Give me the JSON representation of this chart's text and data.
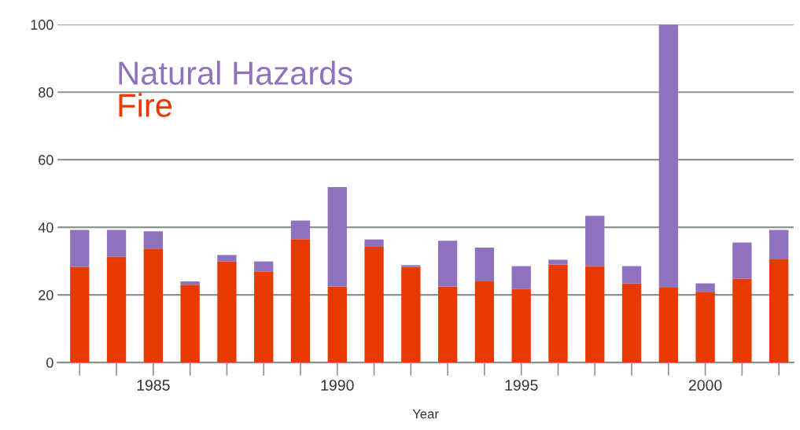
{
  "chart_data": {
    "type": "bar",
    "stacked": true,
    "xlabel": "Year",
    "categories": [
      null,
      null,
      "1985",
      null,
      null,
      null,
      null,
      "1990",
      null,
      null,
      null,
      null,
      "1995",
      null,
      null,
      null,
      null,
      "2000",
      null,
      null
    ],
    "series": [
      {
        "name": "Fire",
        "color": "#e83a00",
        "values": [
          28.3,
          31.3,
          33.7,
          23.0,
          29.9,
          26.8,
          36.5,
          22.5,
          34.2,
          28.3,
          22.5,
          24.0,
          21.7,
          29.0,
          28.5,
          23.4,
          22.1,
          20.7,
          24.8,
          30.5
        ]
      },
      {
        "name": "Natural Hazards",
        "color": "#8f72bd",
        "values": [
          10.9,
          7.9,
          5.1,
          1.0,
          1.9,
          3.1,
          5.5,
          29.4,
          2.2,
          0.5,
          13.5,
          10.0,
          6.8,
          1.4,
          14.9,
          5.1,
          77.9,
          2.7,
          10.7,
          8.7
        ]
      }
    ],
    "ylim": [
      0,
      100
    ],
    "yticks": [
      0,
      20,
      40,
      60,
      80,
      100
    ],
    "grid": "y",
    "legend": "top left"
  }
}
